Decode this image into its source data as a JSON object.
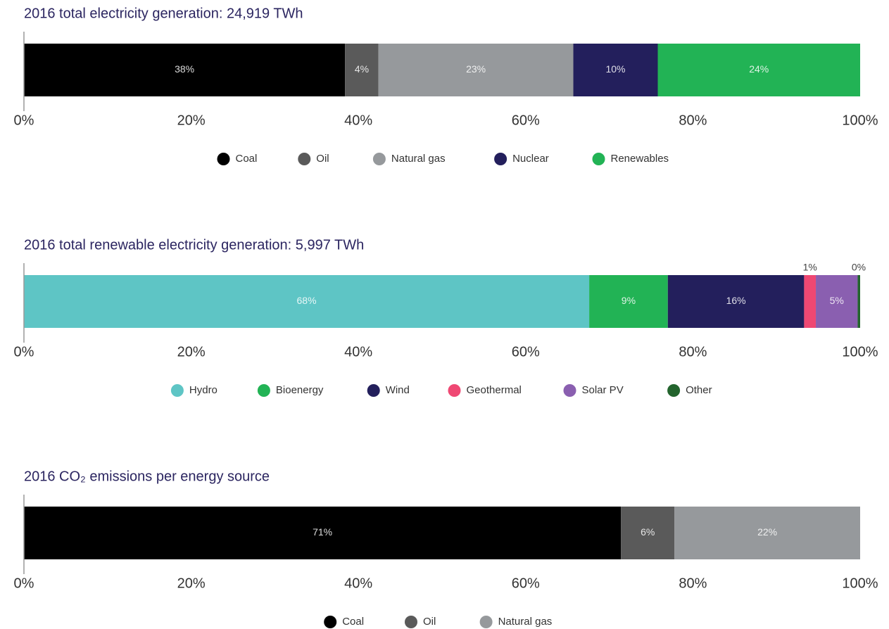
{
  "chart_data": [
    {
      "type": "stacked_bar_h",
      "title": "2016 total electricity generation: 24,919 TWh",
      "xlim": [
        0,
        100
      ],
      "xticks": [
        {
          "value": 0,
          "label": "0%"
        },
        {
          "value": 20,
          "label": "20%"
        },
        {
          "value": 40,
          "label": "40%"
        },
        {
          "value": 60,
          "label": "60%"
        },
        {
          "value": 80,
          "label": "80%"
        },
        {
          "value": 100,
          "label": "100%"
        }
      ],
      "series": [
        {
          "name": "Coal",
          "color": "#000000",
          "values": [
            38.4
          ],
          "value_labels": [
            "38%"
          ]
        },
        {
          "name": "Oil",
          "color": "#5a5a5a",
          "values": [
            4.0
          ],
          "value_labels": [
            "4%"
          ]
        },
        {
          "name": "Natural gas",
          "color": "#96999c",
          "values": [
            23.3
          ],
          "value_labels": [
            "23%"
          ]
        },
        {
          "name": "Nuclear",
          "color": "#231f5c",
          "values": [
            10.1
          ],
          "value_labels": [
            "10%"
          ]
        },
        {
          "name": "Renewables",
          "color": "#22b355",
          "values": [
            24.2
          ],
          "value_labels": [
            "24%"
          ]
        }
      ]
    },
    {
      "type": "stacked_bar_h",
      "title": "2016 total renewable electricity generation: 5,997 TWh",
      "xlim": [
        0,
        100
      ],
      "xticks": [
        {
          "value": 0,
          "label": "0%"
        },
        {
          "value": 20,
          "label": "20%"
        },
        {
          "value": 40,
          "label": "40%"
        },
        {
          "value": 60,
          "label": "60%"
        },
        {
          "value": 80,
          "label": "80%"
        },
        {
          "value": 100,
          "label": "100%"
        }
      ],
      "series": [
        {
          "name": "Hydro",
          "color": "#5ec5c5",
          "values": [
            67.6
          ],
          "value_labels": [
            "68%"
          ]
        },
        {
          "name": "Bioenergy",
          "color": "#22b355",
          "values": [
            9.4
          ],
          "value_labels": [
            "9%"
          ]
        },
        {
          "name": "Wind",
          "color": "#231f5c",
          "values": [
            16.3
          ],
          "value_labels": [
            "16%"
          ]
        },
        {
          "name": "Geothermal",
          "color": "#ef4873",
          "values": [
            1.4
          ],
          "value_labels": [
            "1%"
          ]
        },
        {
          "name": "Solar PV",
          "color": "#8a5fb0",
          "values": [
            5.0
          ],
          "value_labels": [
            "5%"
          ]
        },
        {
          "name": "Other",
          "color": "#23642d",
          "values": [
            0.3
          ],
          "value_labels": [
            "0%"
          ]
        }
      ]
    },
    {
      "type": "stacked_bar_h",
      "title": "2016 CO₂ emissions per energy source",
      "xlim": [
        0,
        100
      ],
      "xticks": [
        {
          "value": 0,
          "label": "0%"
        },
        {
          "value": 20,
          "label": "20%"
        },
        {
          "value": 40,
          "label": "40%"
        },
        {
          "value": 60,
          "label": "60%"
        },
        {
          "value": 80,
          "label": "80%"
        },
        {
          "value": 100,
          "label": "100%"
        }
      ],
      "series": [
        {
          "name": "Coal",
          "color": "#000000",
          "values": [
            71.4
          ],
          "value_labels": [
            "71%"
          ]
        },
        {
          "name": "Oil",
          "color": "#5a5a5a",
          "values": [
            6.4
          ],
          "value_labels": [
            "6%"
          ]
        },
        {
          "name": "Natural gas",
          "color": "#96999c",
          "values": [
            22.2
          ],
          "value_labels": [
            "22%"
          ]
        }
      ]
    }
  ]
}
